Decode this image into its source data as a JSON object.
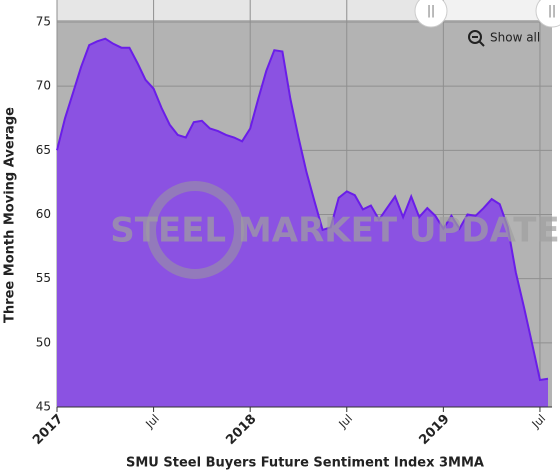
{
  "chart_data": {
    "type": "area",
    "title": "SMU Steel Buyers Future Sentiment Index 3MMA",
    "y_label": "Three Month Moving Average",
    "watermark": "STEEL MARKET UPDATE",
    "reset_button": "Show all",
    "categories": [
      "2017",
      null,
      null,
      null,
      null,
      null,
      null,
      null,
      null,
      null,
      null,
      null,
      "Jul",
      null,
      null,
      null,
      null,
      null,
      null,
      null,
      null,
      null,
      null,
      null,
      "2018",
      null,
      null,
      null,
      null,
      null,
      null,
      null,
      null,
      null,
      null,
      null,
      "Jul",
      null,
      null,
      null,
      null,
      null,
      null,
      null,
      null,
      null,
      null,
      null,
      "2019",
      null,
      null,
      null,
      null,
      null,
      null,
      null,
      null,
      null,
      null,
      null,
      "Jul",
      null
    ],
    "values": [
      65,
      67.5,
      69.5,
      71.5,
      73.2,
      73.5,
      73.7,
      73.3,
      73.0,
      73.0,
      71.8,
      70.5,
      69.8,
      68.3,
      67.0,
      66.2,
      66.0,
      67.2,
      67.3,
      66.7,
      66.5,
      66.2,
      66.0,
      65.7,
      66.7,
      69.0,
      71.2,
      72.8,
      72.7,
      69.0,
      66.0,
      63.3,
      61.0,
      58.8,
      59.0,
      61.3,
      61.8,
      61.5,
      60.4,
      60.7,
      59.6,
      60.5,
      61.4,
      59.8,
      61.4,
      59.8,
      60.5,
      59.9,
      58.9,
      59.9,
      58.9,
      60.0,
      59.9,
      60.5,
      61.2,
      60.8,
      59.0,
      55.5,
      52.8,
      50.0,
      47.1,
      47.2
    ],
    "fill_color": "#8b52e2",
    "line_color": "#6a1ee8",
    "ylim": [
      45,
      75
    ],
    "yticks": [
      45,
      50,
      55,
      60,
      65,
      70,
      75
    ],
    "grid": true
  }
}
